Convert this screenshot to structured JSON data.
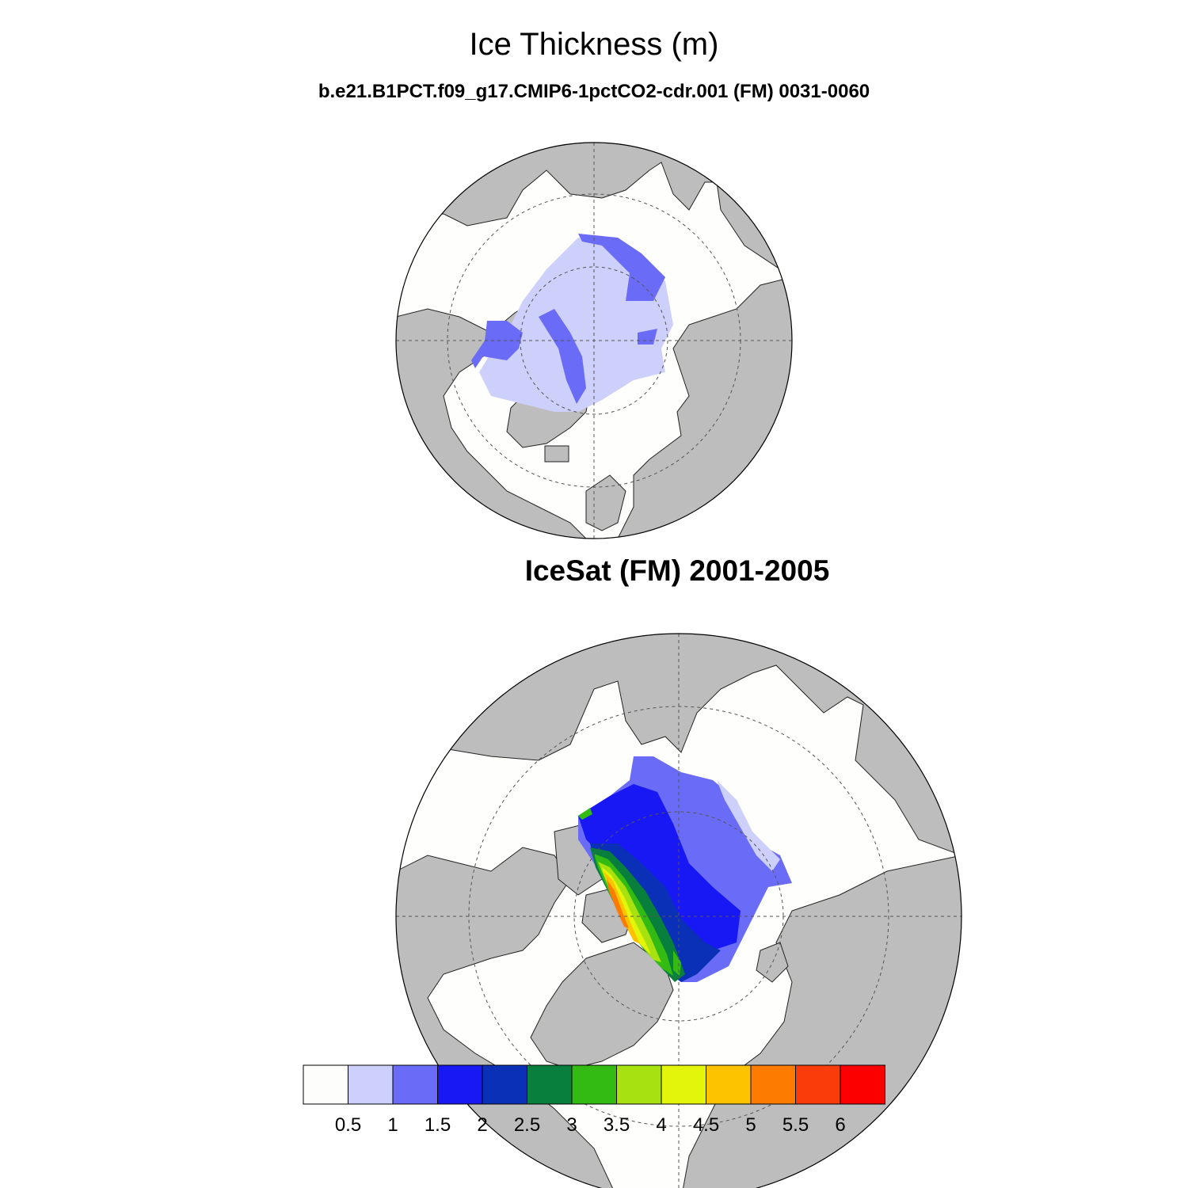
{
  "title": "Ice Thickness (m)",
  "subtitle": "b.e21.B1PCT.f09_g17.CMIP6-1pctCO2-cdr.001 (FM) 0031-0060",
  "panels": [
    {
      "id": "model",
      "label": ""
    },
    {
      "id": "obs",
      "label": "IceSat (FM) 2001-2005"
    }
  ],
  "colors": {
    "land": "#bdbdbd",
    "ocean": "#fefefc",
    "outline": "#222222"
  },
  "colorbar": {
    "labels": [
      "0.5",
      "1",
      "1.5",
      "2",
      "2.5",
      "3",
      "3.5",
      "4",
      "4.5",
      "5",
      "5.5",
      "6"
    ],
    "colors": [
      "#fdfdfb",
      "#cdd0fb",
      "#6a6cf8",
      "#1818f5",
      "#0a30b8",
      "#087f3c",
      "#33bb14",
      "#a7e110",
      "#e2f50a",
      "#fdc300",
      "#fd7c00",
      "#fa3c0a",
      "#fc0000"
    ]
  }
}
